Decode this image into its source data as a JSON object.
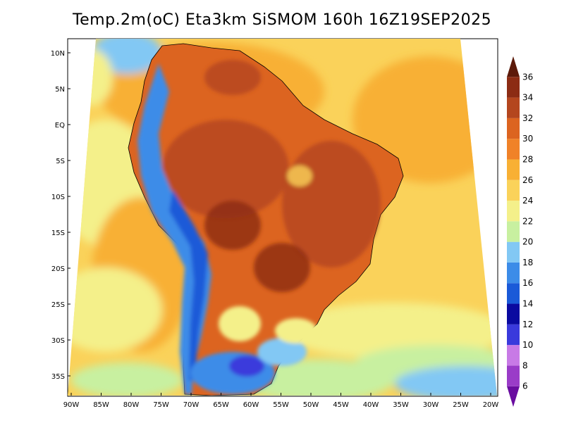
{
  "title": "Temp.2m(oC) Eta3km SiSMOM 160h 16Z19SEP2025",
  "lat_labels": [
    "10N",
    "5N",
    "EQ",
    "5S",
    "10S",
    "15S",
    "20S",
    "25S",
    "30S",
    "35S"
  ],
  "lon_labels": [
    "90W",
    "85W",
    "80W",
    "75W",
    "70W",
    "65W",
    "60W",
    "55W",
    "50W",
    "45W",
    "40W",
    "35W",
    "30W",
    "25W",
    "20W"
  ],
  "colorbar": {
    "levels": [
      "6",
      "8",
      "10",
      "12",
      "14",
      "16",
      "18",
      "20",
      "22",
      "24",
      "26",
      "28",
      "30",
      "32",
      "34",
      "36"
    ],
    "colors": [
      "#6a0da0",
      "#9a3cc8",
      "#c87ae6",
      "#3a3adc",
      "#0a0aa0",
      "#1a5ad8",
      "#3c8ce8",
      "#82c8f4",
      "#c8f0a0",
      "#f4f08a",
      "#fad25a",
      "#f8b034",
      "#f08228",
      "#dc6420",
      "#b4461e",
      "#8c2c14",
      "#5c1a0a"
    ]
  }
}
